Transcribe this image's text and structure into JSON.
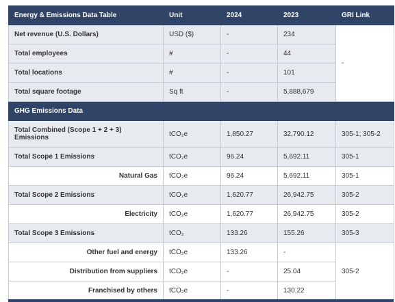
{
  "table": {
    "header": [
      "Energy & Emissions Data Table",
      "Unit",
      "2024",
      "2023",
      "GRI Link"
    ],
    "rows": [
      [
        "Net revenue (U.S. Dollars)",
        "USD ($)",
        "-",
        "234",
        "-"
      ],
      [
        "Total employees",
        "#",
        "-",
        "44"
      ],
      [
        "Total locations",
        "#",
        "-",
        "101"
      ],
      [
        "Total square footage",
        "Sq ft",
        "-",
        "5,888,679"
      ]
    ],
    "section": "GHG Emissions Data",
    "ghg_rows": [
      [
        "Total Combined (Scope 1 + 2 + 3) Emissions",
        "tCO₂e",
        "1,850.27",
        "32,790.12",
        "305-1; 305-2"
      ],
      [
        "Total Scope 1 Emissions",
        "tCO₂e",
        "96.24",
        "5,692.11",
        "305-1"
      ],
      [
        "Natural Gas",
        "tCO₂e",
        "96.24",
        "5,692.11",
        "305-1"
      ],
      [
        "Total Scope 2 Emissions",
        "tCO₂e",
        "1,620.77",
        "26,942.75",
        "305-2"
      ],
      [
        "Electricity",
        "tCO₂e",
        "1,620.77",
        "26,942.75",
        "305-2"
      ],
      [
        "Total Scope 3 Emissions",
        "tCO₂",
        "133.26",
        "155.26",
        "305-3"
      ],
      [
        "Other fuel and energy",
        "tCO₂e",
        "133.26",
        "-",
        "305-2"
      ],
      [
        "Distribution from suppliers",
        "tCO₂e",
        "-",
        "25.04"
      ],
      [
        "Franchised by others",
        "tCO₂e",
        "-",
        "130.22"
      ]
    ]
  }
}
